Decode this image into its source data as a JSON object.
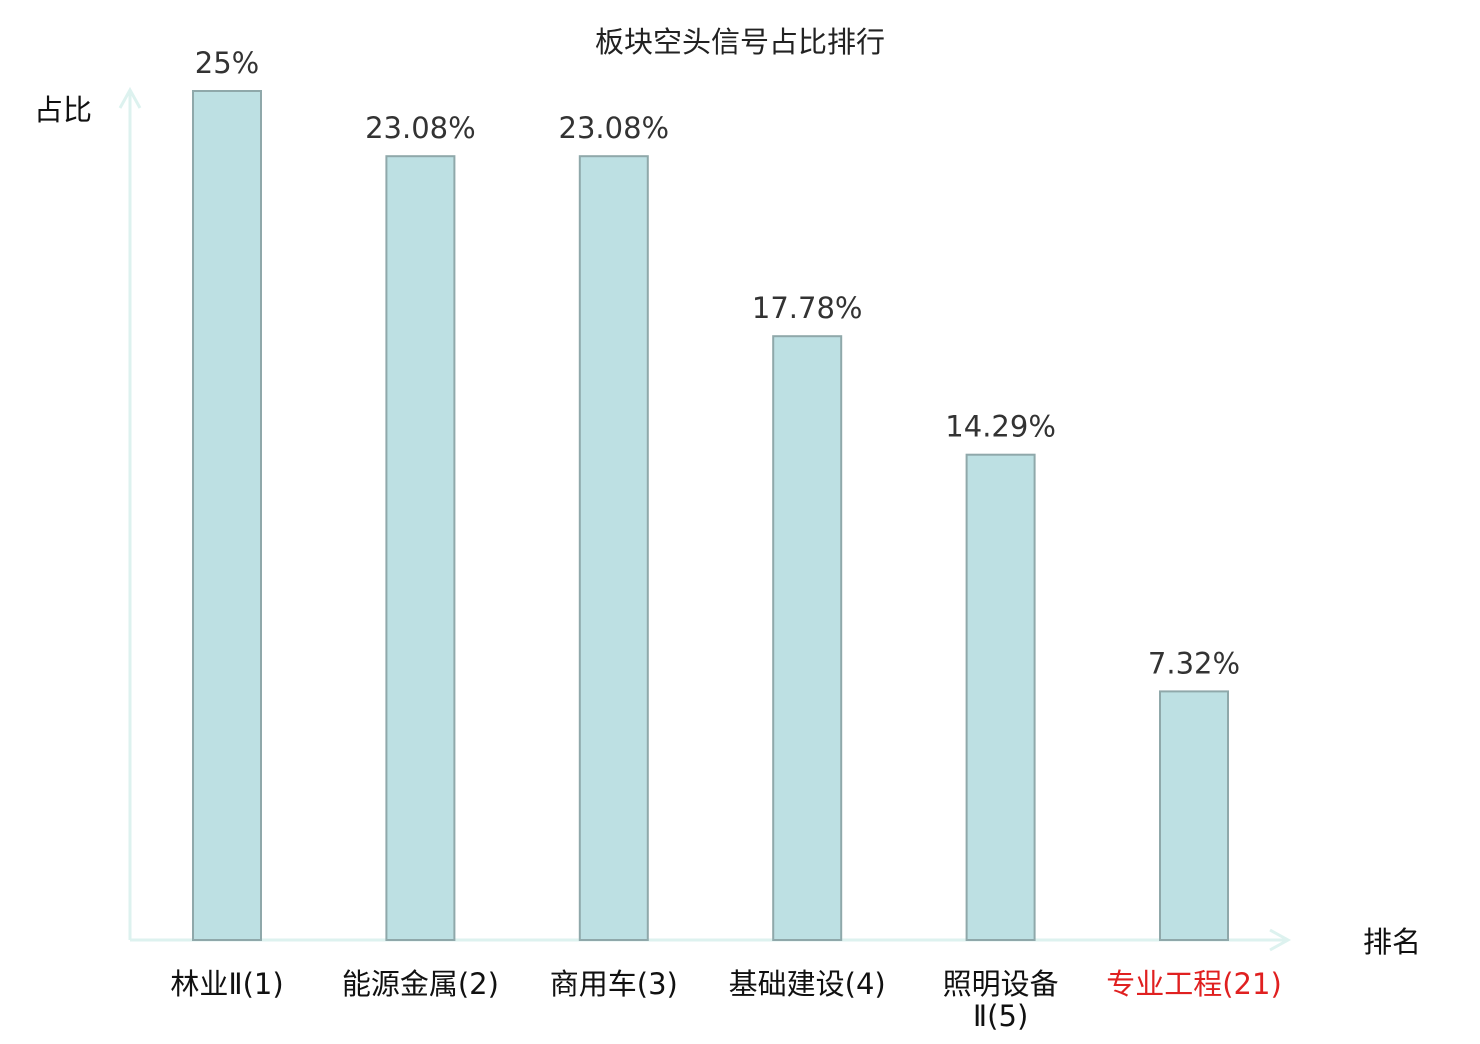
{
  "chart_data": {
    "type": "bar",
    "title": "板块空头信号占比排行",
    "xlabel": "排名",
    "ylabel": "占比",
    "categories": [
      {
        "line1": "林业Ⅱ(1)",
        "line2": "",
        "highlight": false
      },
      {
        "line1": "能源金属(2)",
        "line2": "",
        "highlight": false
      },
      {
        "line1": "商用车(3)",
        "line2": "",
        "highlight": false
      },
      {
        "line1": "基础建设(4)",
        "line2": "",
        "highlight": false
      },
      {
        "line1": "照明设备",
        "line2": "Ⅱ(5)",
        "highlight": false
      },
      {
        "line1": "专业工程(21)",
        "line2": "",
        "highlight": true
      }
    ],
    "values": [
      25,
      23.08,
      23.08,
      17.78,
      14.29,
      7.32
    ],
    "value_labels": [
      "25%",
      "23.08%",
      "23.08%",
      "17.78%",
      "14.29%",
      "7.32%"
    ],
    "ylim": [
      0,
      25
    ],
    "grid": false,
    "legend": "none",
    "colors": {
      "bar_fill": "#bde0e3",
      "bar_stroke": "#8fa8aa",
      "axis": "#ddf2ef",
      "value_text": "#333333",
      "category_text": "#111111",
      "highlight_text": "#e02020"
    }
  }
}
